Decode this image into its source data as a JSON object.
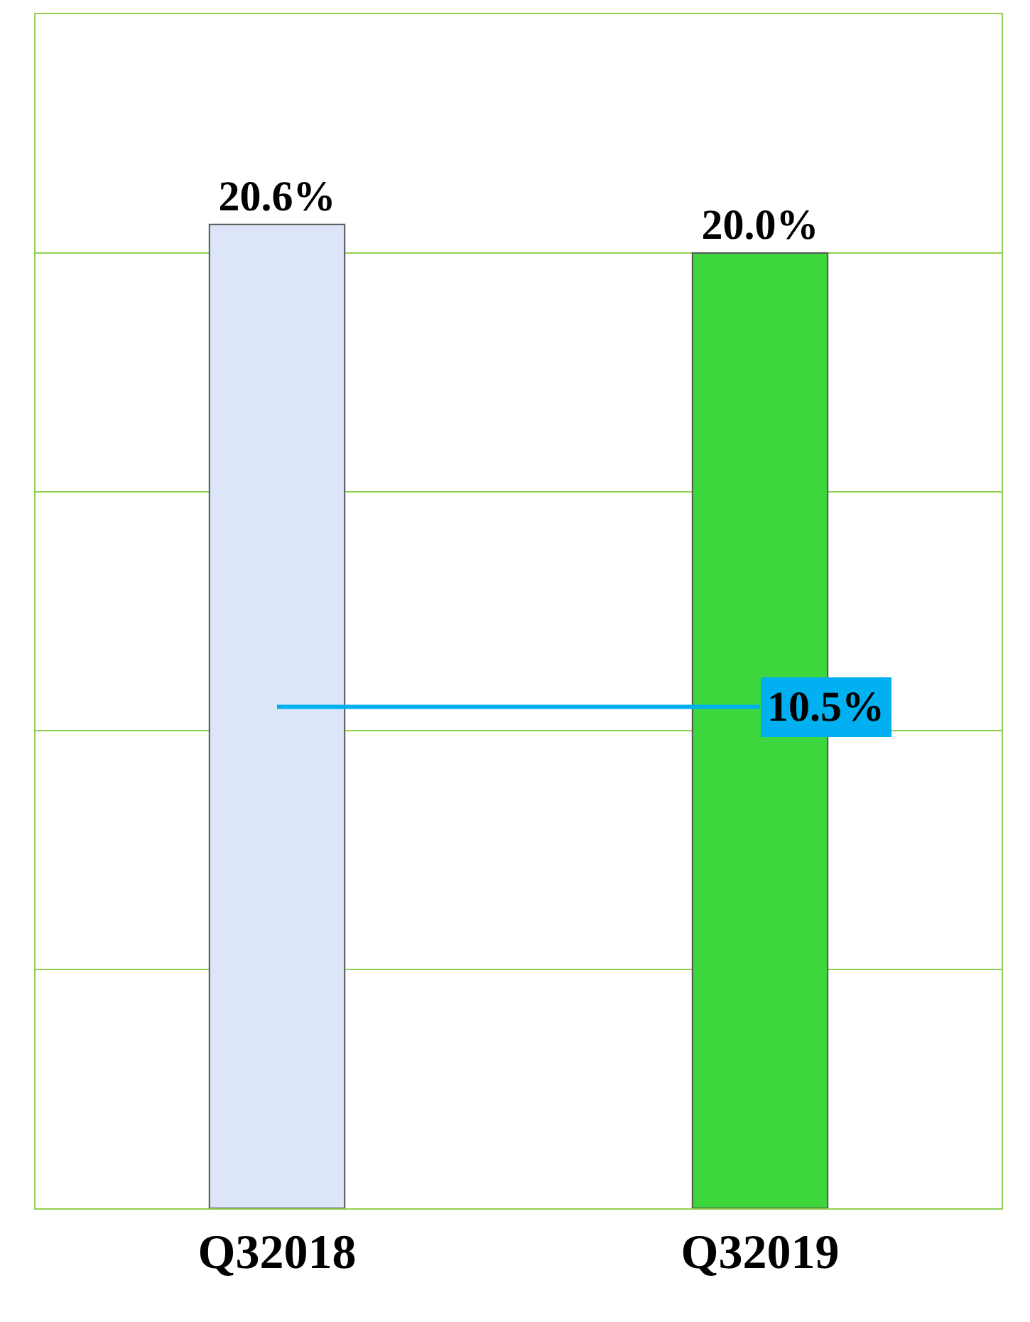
{
  "chart_data": {
    "type": "bar",
    "categories": [
      "Q32018",
      "Q32019"
    ],
    "values": [
      20.6,
      20.0
    ],
    "colors": [
      "#dce6f8",
      "#3dd63d"
    ],
    "value_labels": [
      "20.6%",
      "20.0%"
    ],
    "ylim": [
      0,
      25
    ],
    "yticks": [
      {
        "value": 0,
        "label": null
      },
      {
        "value": 5,
        "label": null
      },
      {
        "value": 10,
        "label": null
      },
      {
        "value": 15,
        "label": null
      },
      {
        "value": 20,
        "label": null
      }
    ],
    "grid": "y",
    "tick_labels": "x",
    "legend": false,
    "ref_lines": [
      {
        "axis": "y",
        "value": 10.5,
        "label": "10.5%",
        "color": "#00b0f0"
      }
    ]
  }
}
